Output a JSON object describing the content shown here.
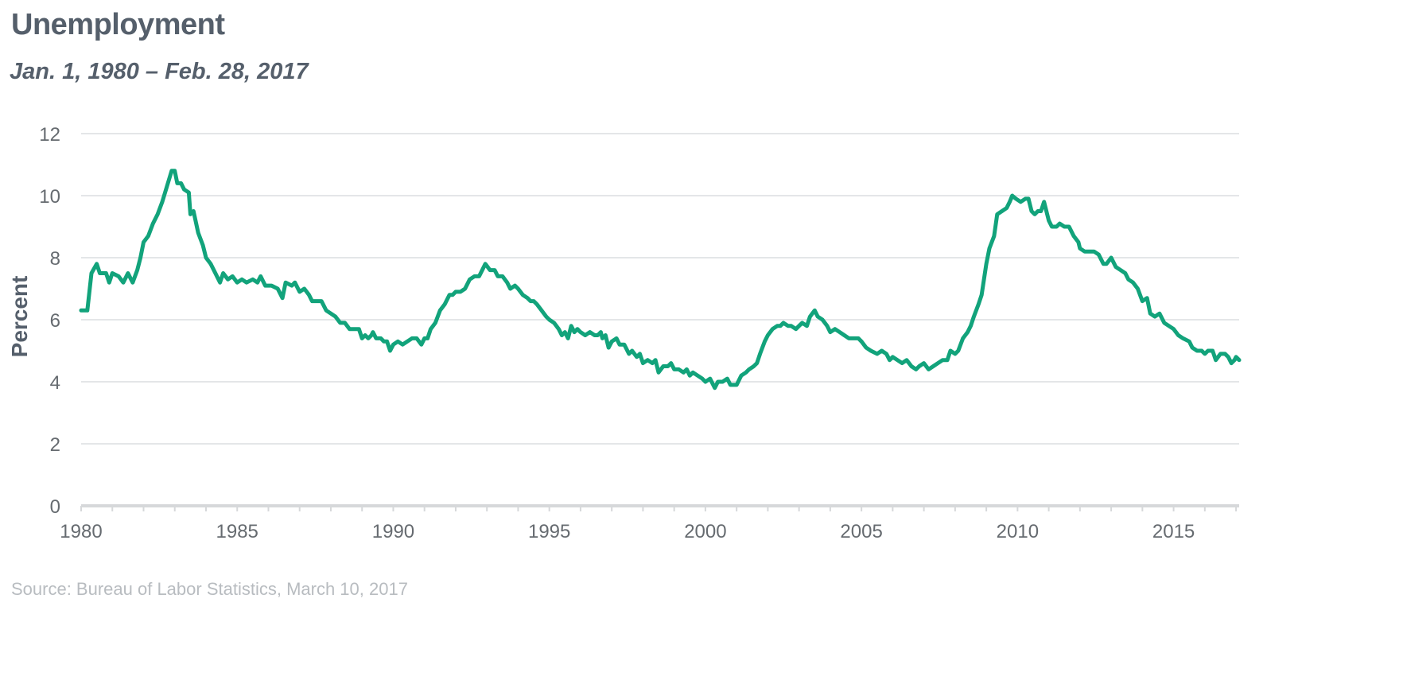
{
  "header": {
    "title": "Unemployment",
    "subtitle": "Jan. 1, 1980 – Feb. 28, 2017"
  },
  "footer": {
    "source": "Source: Bureau of Labor Statistics, March 10, 2017"
  },
  "colors": {
    "line": "#12a37b",
    "grid": "#e4e6e8",
    "axis": "#d6d8da",
    "text": "#666b70",
    "title": "#555f6b"
  },
  "chart_data": {
    "type": "line",
    "ylabel": "Percent",
    "xlabel": "",
    "xlim": [
      1980,
      2017.1
    ],
    "ylim": [
      0,
      12
    ],
    "x_ticks": [
      1980,
      1985,
      1990,
      1995,
      2000,
      2005,
      2010,
      2015
    ],
    "y_ticks": [
      0,
      2,
      4,
      6,
      8,
      10,
      12
    ],
    "grid": "horizontal",
    "series": [
      {
        "values": [
          [
            1980.0,
            6.3
          ],
          [
            1980.2,
            6.3
          ],
          [
            1980.33,
            7.5
          ],
          [
            1980.5,
            7.8
          ],
          [
            1980.6,
            7.5
          ],
          [
            1980.8,
            7.5
          ],
          [
            1980.9,
            7.2
          ],
          [
            1981.0,
            7.5
          ],
          [
            1981.2,
            7.4
          ],
          [
            1981.35,
            7.2
          ],
          [
            1981.5,
            7.5
          ],
          [
            1981.65,
            7.2
          ],
          [
            1981.8,
            7.6
          ],
          [
            1981.9,
            8.0
          ],
          [
            1982.0,
            8.5
          ],
          [
            1982.15,
            8.7
          ],
          [
            1982.3,
            9.1
          ],
          [
            1982.45,
            9.4
          ],
          [
            1982.6,
            9.8
          ],
          [
            1982.75,
            10.3
          ],
          [
            1982.9,
            10.8
          ],
          [
            1983.0,
            10.8
          ],
          [
            1983.08,
            10.4
          ],
          [
            1983.2,
            10.4
          ],
          [
            1983.3,
            10.2
          ],
          [
            1983.45,
            10.1
          ],
          [
            1983.5,
            9.4
          ],
          [
            1983.6,
            9.5
          ],
          [
            1983.75,
            8.8
          ],
          [
            1983.9,
            8.4
          ],
          [
            1984.0,
            8.0
          ],
          [
            1984.15,
            7.8
          ],
          [
            1984.3,
            7.5
          ],
          [
            1984.45,
            7.2
          ],
          [
            1984.55,
            7.5
          ],
          [
            1984.7,
            7.3
          ],
          [
            1984.85,
            7.4
          ],
          [
            1985.0,
            7.2
          ],
          [
            1985.15,
            7.3
          ],
          [
            1985.3,
            7.2
          ],
          [
            1985.5,
            7.3
          ],
          [
            1985.65,
            7.2
          ],
          [
            1985.75,
            7.4
          ],
          [
            1985.9,
            7.1
          ],
          [
            1986.1,
            7.1
          ],
          [
            1986.3,
            7.0
          ],
          [
            1986.45,
            6.7
          ],
          [
            1986.55,
            7.2
          ],
          [
            1986.75,
            7.1
          ],
          [
            1986.85,
            7.2
          ],
          [
            1987.0,
            6.9
          ],
          [
            1987.15,
            7.0
          ],
          [
            1987.3,
            6.8
          ],
          [
            1987.4,
            6.6
          ],
          [
            1987.55,
            6.6
          ],
          [
            1987.7,
            6.6
          ],
          [
            1987.85,
            6.3
          ],
          [
            1988.0,
            6.2
          ],
          [
            1988.15,
            6.1
          ],
          [
            1988.3,
            5.9
          ],
          [
            1988.45,
            5.9
          ],
          [
            1988.6,
            5.7
          ],
          [
            1988.75,
            5.7
          ],
          [
            1988.9,
            5.7
          ],
          [
            1989.0,
            5.4
          ],
          [
            1989.1,
            5.5
          ],
          [
            1989.2,
            5.4
          ],
          [
            1989.3,
            5.5
          ],
          [
            1989.35,
            5.6
          ],
          [
            1989.45,
            5.4
          ],
          [
            1989.6,
            5.4
          ],
          [
            1989.7,
            5.3
          ],
          [
            1989.8,
            5.3
          ],
          [
            1989.9,
            5.0
          ],
          [
            1990.0,
            5.2
          ],
          [
            1990.15,
            5.3
          ],
          [
            1990.3,
            5.2
          ],
          [
            1990.45,
            5.3
          ],
          [
            1990.6,
            5.4
          ],
          [
            1990.75,
            5.4
          ],
          [
            1990.9,
            5.2
          ],
          [
            1991.0,
            5.4
          ],
          [
            1991.1,
            5.4
          ],
          [
            1991.2,
            5.7
          ],
          [
            1991.35,
            5.9
          ],
          [
            1991.5,
            6.3
          ],
          [
            1991.65,
            6.5
          ],
          [
            1991.8,
            6.8
          ],
          [
            1991.9,
            6.8
          ],
          [
            1992.0,
            6.9
          ],
          [
            1992.15,
            6.9
          ],
          [
            1992.3,
            7.0
          ],
          [
            1992.45,
            7.3
          ],
          [
            1992.6,
            7.4
          ],
          [
            1992.75,
            7.4
          ],
          [
            1992.85,
            7.6
          ],
          [
            1992.95,
            7.8
          ],
          [
            1993.1,
            7.6
          ],
          [
            1993.25,
            7.6
          ],
          [
            1993.35,
            7.4
          ],
          [
            1993.5,
            7.4
          ],
          [
            1993.65,
            7.2
          ],
          [
            1993.75,
            7.0
          ],
          [
            1993.9,
            7.1
          ],
          [
            1994.0,
            7.0
          ],
          [
            1994.15,
            6.8
          ],
          [
            1994.3,
            6.7
          ],
          [
            1994.4,
            6.6
          ],
          [
            1994.5,
            6.6
          ],
          [
            1994.6,
            6.5
          ],
          [
            1994.75,
            6.3
          ],
          [
            1994.9,
            6.1
          ],
          [
            1995.0,
            6.0
          ],
          [
            1995.15,
            5.9
          ],
          [
            1995.3,
            5.7
          ],
          [
            1995.4,
            5.5
          ],
          [
            1995.5,
            5.6
          ],
          [
            1995.6,
            5.4
          ],
          [
            1995.7,
            5.8
          ],
          [
            1995.8,
            5.6
          ],
          [
            1995.9,
            5.7
          ],
          [
            1996.0,
            5.6
          ],
          [
            1996.15,
            5.5
          ],
          [
            1996.3,
            5.6
          ],
          [
            1996.45,
            5.5
          ],
          [
            1996.55,
            5.5
          ],
          [
            1996.65,
            5.6
          ],
          [
            1996.7,
            5.4
          ],
          [
            1996.8,
            5.5
          ],
          [
            1996.9,
            5.1
          ],
          [
            1997.0,
            5.3
          ],
          [
            1997.15,
            5.4
          ],
          [
            1997.25,
            5.2
          ],
          [
            1997.4,
            5.2
          ],
          [
            1997.55,
            4.9
          ],
          [
            1997.65,
            5.0
          ],
          [
            1997.8,
            4.8
          ],
          [
            1997.9,
            4.9
          ],
          [
            1998.0,
            4.6
          ],
          [
            1998.15,
            4.7
          ],
          [
            1998.3,
            4.6
          ],
          [
            1998.4,
            4.7
          ],
          [
            1998.5,
            4.3
          ],
          [
            1998.65,
            4.5
          ],
          [
            1998.8,
            4.5
          ],
          [
            1998.9,
            4.6
          ],
          [
            1999.0,
            4.4
          ],
          [
            1999.15,
            4.4
          ],
          [
            1999.3,
            4.3
          ],
          [
            1999.4,
            4.4
          ],
          [
            1999.5,
            4.2
          ],
          [
            1999.6,
            4.3
          ],
          [
            1999.75,
            4.2
          ],
          [
            1999.9,
            4.1
          ],
          [
            2000.0,
            4.0
          ],
          [
            2000.15,
            4.1
          ],
          [
            2000.3,
            3.8
          ],
          [
            2000.4,
            4.0
          ],
          [
            2000.55,
            4.0
          ],
          [
            2000.7,
            4.1
          ],
          [
            2000.8,
            3.9
          ],
          [
            2000.9,
            3.9
          ],
          [
            2001.0,
            3.9
          ],
          [
            2001.15,
            4.2
          ],
          [
            2001.3,
            4.3
          ],
          [
            2001.4,
            4.4
          ],
          [
            2001.55,
            4.5
          ],
          [
            2001.65,
            4.6
          ],
          [
            2001.75,
            4.9
          ],
          [
            2001.9,
            5.3
          ],
          [
            2002.0,
            5.5
          ],
          [
            2002.15,
            5.7
          ],
          [
            2002.3,
            5.8
          ],
          [
            2002.4,
            5.8
          ],
          [
            2002.5,
            5.9
          ],
          [
            2002.65,
            5.8
          ],
          [
            2002.75,
            5.8
          ],
          [
            2002.9,
            5.7
          ],
          [
            2003.0,
            5.8
          ],
          [
            2003.1,
            5.9
          ],
          [
            2003.25,
            5.8
          ],
          [
            2003.35,
            6.1
          ],
          [
            2003.5,
            6.3
          ],
          [
            2003.6,
            6.1
          ],
          [
            2003.75,
            6.0
          ],
          [
            2003.9,
            5.8
          ],
          [
            2004.0,
            5.6
          ],
          [
            2004.15,
            5.7
          ],
          [
            2004.3,
            5.6
          ],
          [
            2004.45,
            5.5
          ],
          [
            2004.6,
            5.4
          ],
          [
            2004.75,
            5.4
          ],
          [
            2004.9,
            5.4
          ],
          [
            2005.0,
            5.3
          ],
          [
            2005.15,
            5.1
          ],
          [
            2005.3,
            5.0
          ],
          [
            2005.5,
            4.9
          ],
          [
            2005.65,
            5.0
          ],
          [
            2005.8,
            4.9
          ],
          [
            2005.9,
            4.7
          ],
          [
            2006.0,
            4.8
          ],
          [
            2006.15,
            4.7
          ],
          [
            2006.3,
            4.6
          ],
          [
            2006.45,
            4.7
          ],
          [
            2006.6,
            4.5
          ],
          [
            2006.75,
            4.4
          ],
          [
            2006.85,
            4.5
          ],
          [
            2007.0,
            4.6
          ],
          [
            2007.15,
            4.4
          ],
          [
            2007.3,
            4.5
          ],
          [
            2007.45,
            4.6
          ],
          [
            2007.6,
            4.7
          ],
          [
            2007.75,
            4.7
          ],
          [
            2007.85,
            5.0
          ],
          [
            2008.0,
            4.9
          ],
          [
            2008.1,
            5.0
          ],
          [
            2008.25,
            5.4
          ],
          [
            2008.4,
            5.6
          ],
          [
            2008.5,
            5.8
          ],
          [
            2008.6,
            6.1
          ],
          [
            2008.75,
            6.5
          ],
          [
            2008.85,
            6.8
          ],
          [
            2009.0,
            7.8
          ],
          [
            2009.1,
            8.3
          ],
          [
            2009.25,
            8.7
          ],
          [
            2009.35,
            9.4
          ],
          [
            2009.5,
            9.5
          ],
          [
            2009.65,
            9.6
          ],
          [
            2009.75,
            9.8
          ],
          [
            2009.83,
            10.0
          ],
          [
            2009.95,
            9.9
          ],
          [
            2010.1,
            9.8
          ],
          [
            2010.25,
            9.9
          ],
          [
            2010.35,
            9.9
          ],
          [
            2010.45,
            9.5
          ],
          [
            2010.55,
            9.4
          ],
          [
            2010.65,
            9.5
          ],
          [
            2010.75,
            9.5
          ],
          [
            2010.85,
            9.8
          ],
          [
            2011.0,
            9.2
          ],
          [
            2011.1,
            9.0
          ],
          [
            2011.25,
            9.0
          ],
          [
            2011.35,
            9.1
          ],
          [
            2011.5,
            9.0
          ],
          [
            2011.65,
            9.0
          ],
          [
            2011.8,
            8.7
          ],
          [
            2011.95,
            8.5
          ],
          [
            2012.0,
            8.3
          ],
          [
            2012.15,
            8.2
          ],
          [
            2012.3,
            8.2
          ],
          [
            2012.45,
            8.2
          ],
          [
            2012.6,
            8.1
          ],
          [
            2012.75,
            7.8
          ],
          [
            2012.85,
            7.8
          ],
          [
            2013.0,
            8.0
          ],
          [
            2013.15,
            7.7
          ],
          [
            2013.3,
            7.6
          ],
          [
            2013.45,
            7.5
          ],
          [
            2013.55,
            7.3
          ],
          [
            2013.7,
            7.2
          ],
          [
            2013.85,
            7.0
          ],
          [
            2014.0,
            6.6
          ],
          [
            2014.15,
            6.7
          ],
          [
            2014.25,
            6.2
          ],
          [
            2014.4,
            6.1
          ],
          [
            2014.55,
            6.2
          ],
          [
            2014.7,
            5.9
          ],
          [
            2014.85,
            5.8
          ],
          [
            2015.0,
            5.7
          ],
          [
            2015.15,
            5.5
          ],
          [
            2015.3,
            5.4
          ],
          [
            2015.5,
            5.3
          ],
          [
            2015.6,
            5.1
          ],
          [
            2015.75,
            5.0
          ],
          [
            2015.9,
            5.0
          ],
          [
            2016.0,
            4.9
          ],
          [
            2016.1,
            5.0
          ],
          [
            2016.25,
            5.0
          ],
          [
            2016.35,
            4.7
          ],
          [
            2016.5,
            4.9
          ],
          [
            2016.65,
            4.9
          ],
          [
            2016.75,
            4.8
          ],
          [
            2016.85,
            4.6
          ],
          [
            2016.95,
            4.7
          ],
          [
            2017.0,
            4.8
          ],
          [
            2017.1,
            4.7
          ]
        ]
      }
    ]
  }
}
